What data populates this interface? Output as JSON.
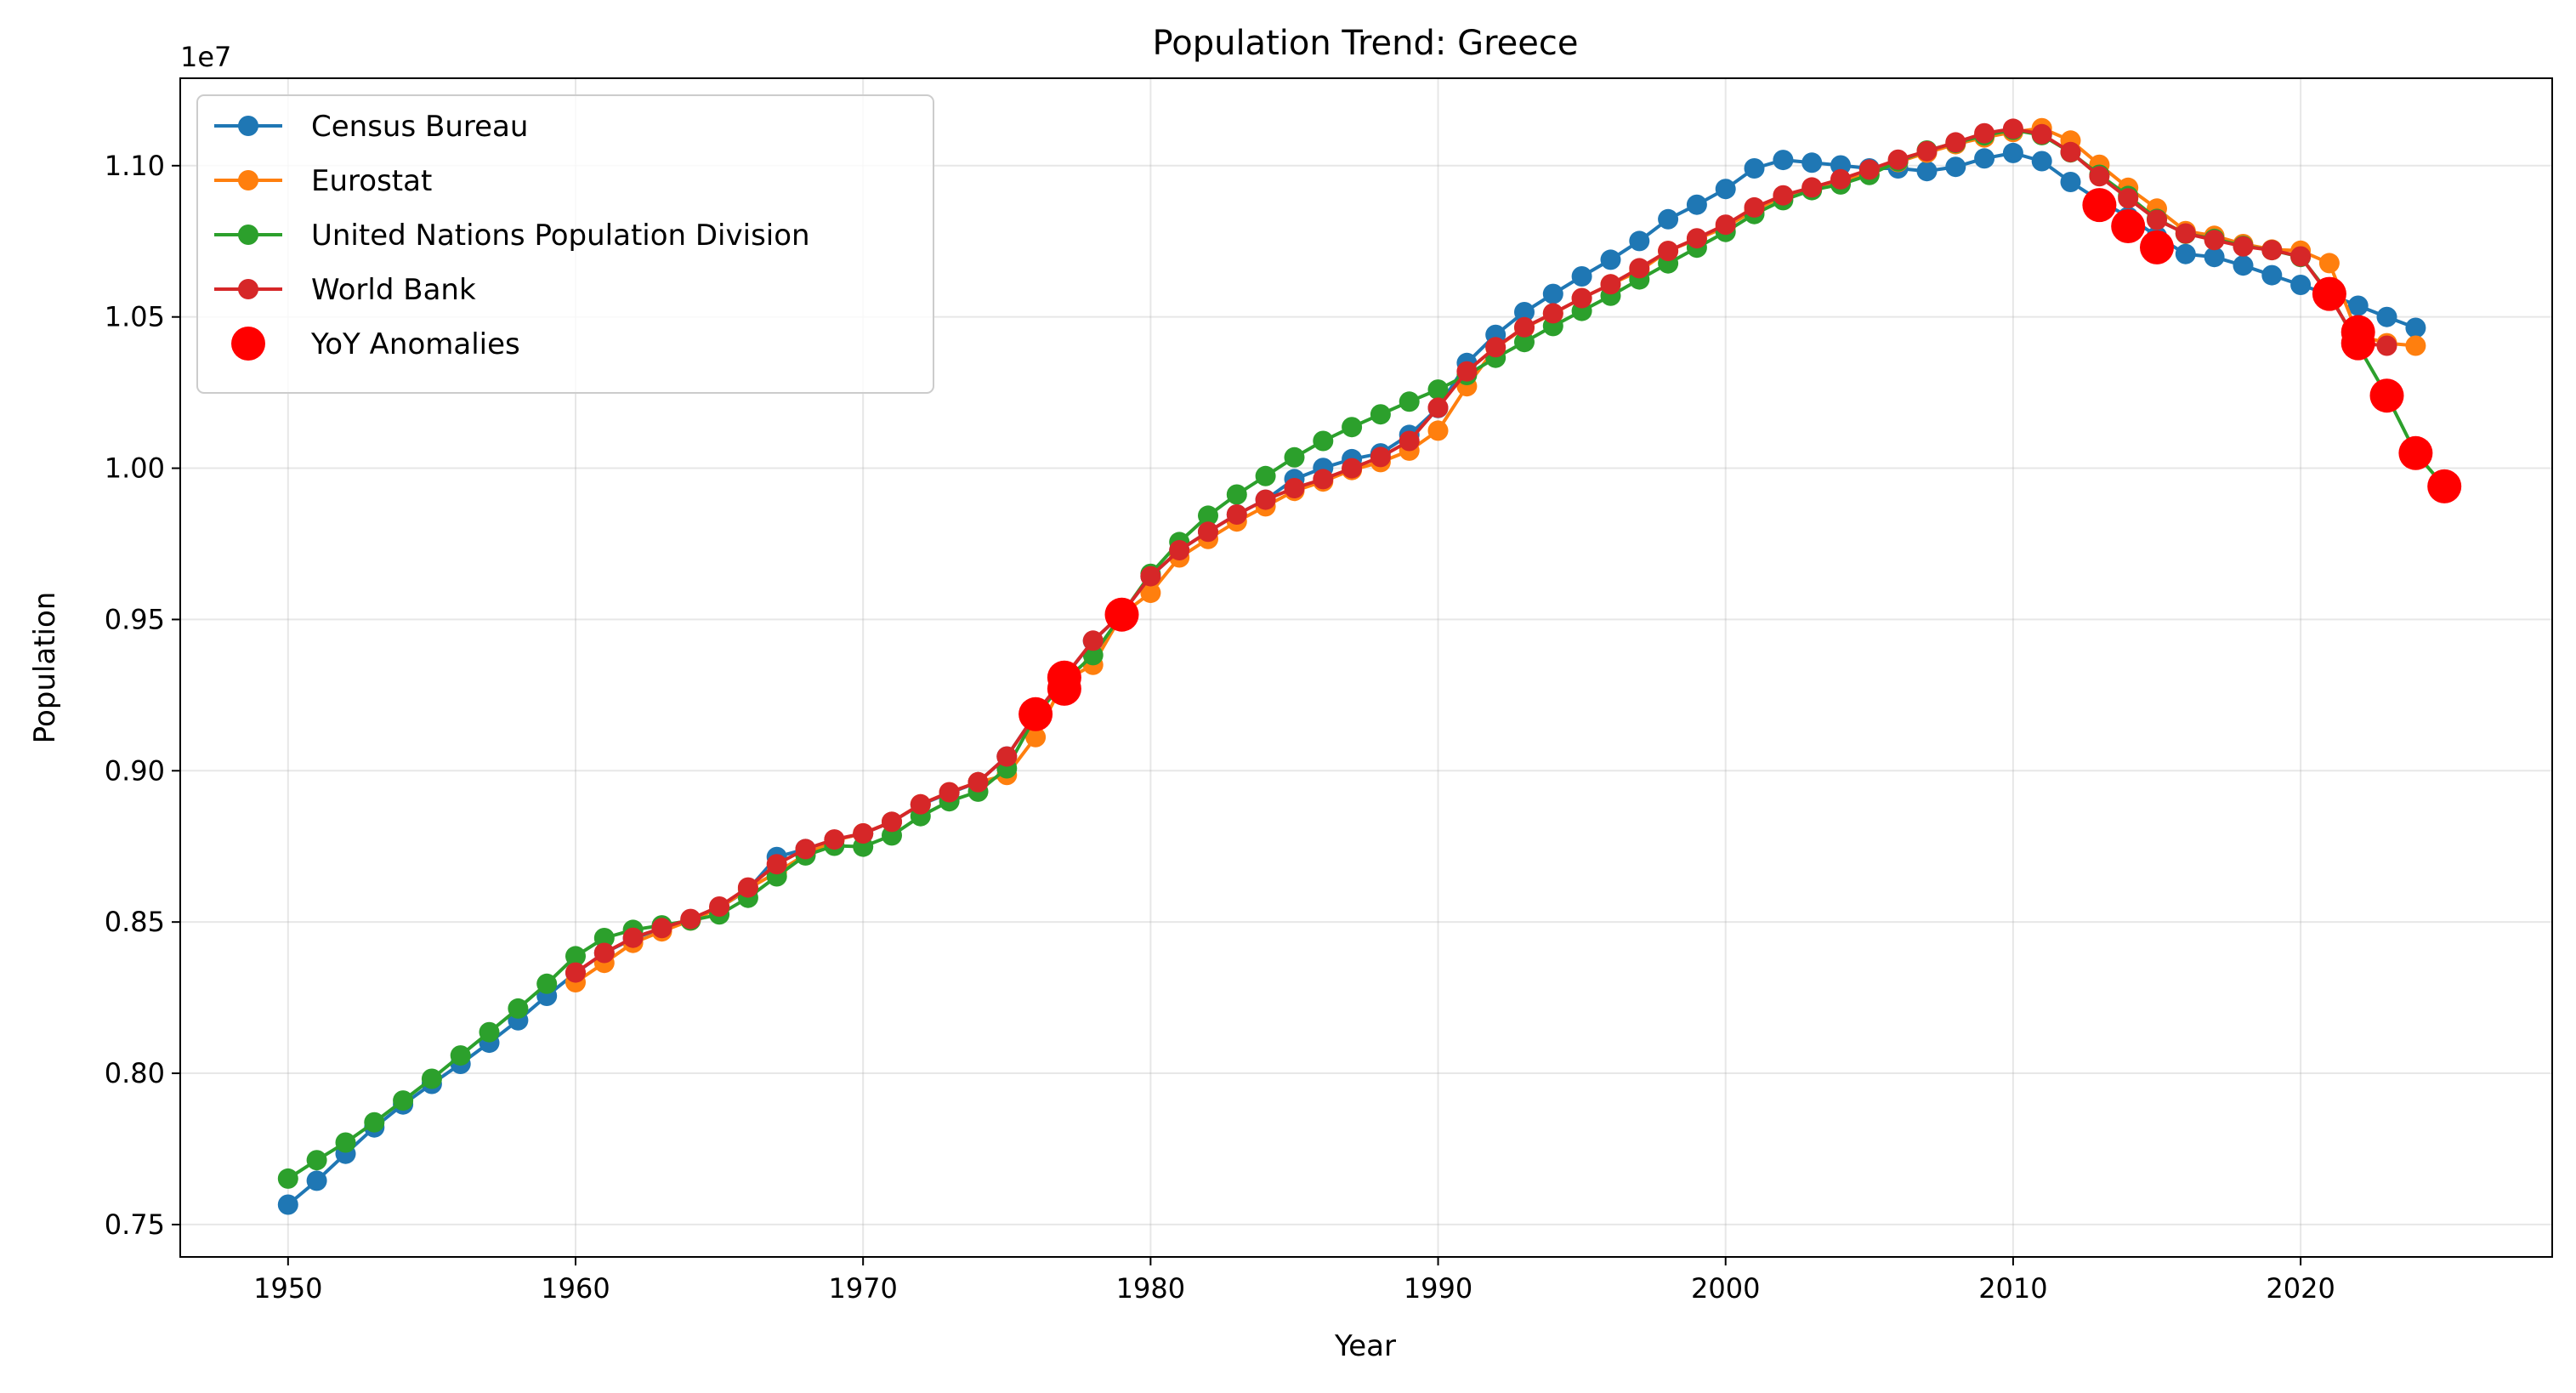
{
  "chart_data": {
    "type": "line",
    "title": "Population Trend: Greece",
    "xlabel": "Year",
    "ylabel": "Population",
    "y_offset_text": "1e7",
    "y_scale_factor": 10000000,
    "xlim": [
      1946.25,
      2028.75
    ],
    "ylim": [
      0.7393,
      1.1289
    ],
    "x_ticks": [
      1950,
      1960,
      1970,
      1980,
      1990,
      2000,
      2010,
      2020
    ],
    "y_ticks": [
      0.75,
      0.8,
      0.85,
      0.9,
      0.95,
      1.0,
      1.05,
      1.1
    ],
    "y_tick_labels": [
      "0.75",
      "0.80",
      "0.85",
      "0.90",
      "0.95",
      "1.00",
      "1.05",
      "1.10"
    ],
    "grid": true,
    "legend_position": "top-left",
    "series": [
      {
        "name": "Census Bureau",
        "color": "#1f77b4",
        "start_year": 1950,
        "values": [
          0.7566,
          0.7645,
          0.7734,
          0.7821,
          0.7897,
          0.7965,
          0.8031,
          0.8101,
          0.8175,
          0.8256,
          0.8332,
          0.8398,
          0.8445,
          0.8479,
          0.8509,
          0.8547,
          0.8607,
          0.8715,
          0.8741,
          0.8772,
          0.8792,
          0.8831,
          0.8888,
          0.8926,
          0.8962,
          0.9047,
          0.9187,
          0.9308,
          0.9429,
          0.9519,
          0.9643,
          0.9729,
          0.979,
          0.9847,
          0.9896,
          0.9964,
          1.0001,
          1.003,
          1.0049,
          1.011,
          1.0199,
          1.0348,
          1.0441,
          1.0516,
          1.0576,
          1.0634,
          1.0689,
          1.0751,
          1.0823,
          1.0871,
          1.0923,
          1.0991,
          1.1019,
          1.101,
          1.1001,
          1.0991,
          1.0991,
          1.0982,
          1.0996,
          1.1024,
          1.1042,
          1.1015,
          1.0946,
          1.0885,
          1.0831,
          1.0767,
          1.0708,
          1.0698,
          1.067,
          1.0638,
          1.0606,
          1.0574,
          1.0537,
          1.05,
          1.0464
        ]
      },
      {
        "name": "Eurostat",
        "color": "#ff7f0e",
        "start_year": 1960,
        "values": [
          0.8301,
          0.8365,
          0.8431,
          0.8469,
          0.8505,
          0.8546,
          0.861,
          0.8664,
          0.8723,
          0.877,
          0.8793,
          0.8831,
          0.8889,
          0.8929,
          0.8962,
          0.8986,
          0.9111,
          0.9298,
          0.935,
          0.9516,
          0.9588,
          0.9705,
          0.9766,
          0.9824,
          0.9874,
          0.9925,
          0.9956,
          0.9994,
          1.002,
          1.0058,
          1.0124,
          1.0271,
          1.0398,
          1.0464,
          1.0511,
          1.0562,
          1.0608,
          1.0652,
          1.0718,
          1.0757,
          1.0797,
          1.0853,
          1.0898,
          1.0926,
          1.0948,
          1.0972,
          1.1012,
          1.1043,
          1.1071,
          1.1093,
          1.1111,
          1.1124,
          1.1083,
          1.1003,
          1.0927,
          1.0858,
          1.0784,
          1.0768,
          1.0741,
          1.0723,
          1.0719,
          1.0678,
          1.044,
          1.0413,
          1.0405
        ]
      },
      {
        "name": "United Nations Population Division",
        "color": "#2ca02c",
        "start_year": 1950,
        "values": [
          0.7652,
          0.7713,
          0.7771,
          0.7838,
          0.791,
          0.7982,
          0.8059,
          0.8136,
          0.8214,
          0.8296,
          0.8387,
          0.8447,
          0.8474,
          0.8489,
          0.8505,
          0.8525,
          0.858,
          0.8651,
          0.872,
          0.8752,
          0.8749,
          0.8786,
          0.885,
          0.8899,
          0.8931,
          0.9008,
          0.9181,
          0.9295,
          0.9382,
          0.9516,
          0.9651,
          0.9756,
          0.9843,
          0.9913,
          0.9974,
          1.0036,
          1.009,
          1.0136,
          1.0178,
          1.022,
          1.026,
          1.0308,
          1.0365,
          1.0417,
          1.047,
          1.052,
          1.057,
          1.0624,
          1.0677,
          1.0729,
          1.0781,
          1.084,
          1.0886,
          1.0919,
          1.0938,
          1.0969,
          1.1014,
          1.105,
          1.1075,
          1.11,
          1.1118,
          1.1101,
          1.1044,
          1.097,
          1.09,
          1.0824,
          1.0775,
          1.0758,
          1.0735,
          1.0721,
          1.0698,
          1.0576,
          1.0405,
          1.024,
          1.005,
          0.994
        ]
      },
      {
        "name": "World Bank",
        "color": "#d62728",
        "start_year": 1960,
        "values": [
          0.8333,
          0.8398,
          0.8448,
          0.848,
          0.851,
          0.8551,
          0.8614,
          0.8691,
          0.8741,
          0.8773,
          0.8793,
          0.8831,
          0.8889,
          0.8929,
          0.8962,
          0.9047,
          0.9187,
          0.9309,
          0.943,
          0.9519,
          0.9643,
          0.9729,
          0.979,
          0.9847,
          0.9896,
          0.9934,
          0.9964,
          1.0,
          1.0037,
          1.009,
          1.02,
          1.032,
          1.04,
          1.0466,
          1.0512,
          1.0562,
          1.0608,
          1.0661,
          1.0718,
          1.076,
          1.0805,
          1.0862,
          1.0902,
          1.0928,
          1.0955,
          1.0987,
          1.102,
          1.1048,
          1.1077,
          1.1107,
          1.1122,
          1.1104,
          1.1045,
          1.0965,
          1.0892,
          1.0821,
          1.0776,
          1.0754,
          1.0733,
          1.0721,
          1.07,
          1.057,
          1.0413,
          1.0405
        ]
      }
    ],
    "anomalies": {
      "name": "YoY Anomalies",
      "color": "#ff0000",
      "points": [
        {
          "x": 1976,
          "y": 0.9187
        },
        {
          "x": 1977,
          "y": 0.9271
        },
        {
          "x": 1977,
          "y": 0.9308
        },
        {
          "x": 1979,
          "y": 0.9516
        },
        {
          "x": 2013,
          "y": 1.087
        },
        {
          "x": 2014,
          "y": 1.08
        },
        {
          "x": 2015,
          "y": 1.073
        },
        {
          "x": 2021,
          "y": 1.0576
        },
        {
          "x": 2022,
          "y": 1.0413
        },
        {
          "x": 2022,
          "y": 1.045
        },
        {
          "x": 2023,
          "y": 1.024
        },
        {
          "x": 2024,
          "y": 1.005
        },
        {
          "x": 2025,
          "y": 0.994
        }
      ]
    }
  }
}
